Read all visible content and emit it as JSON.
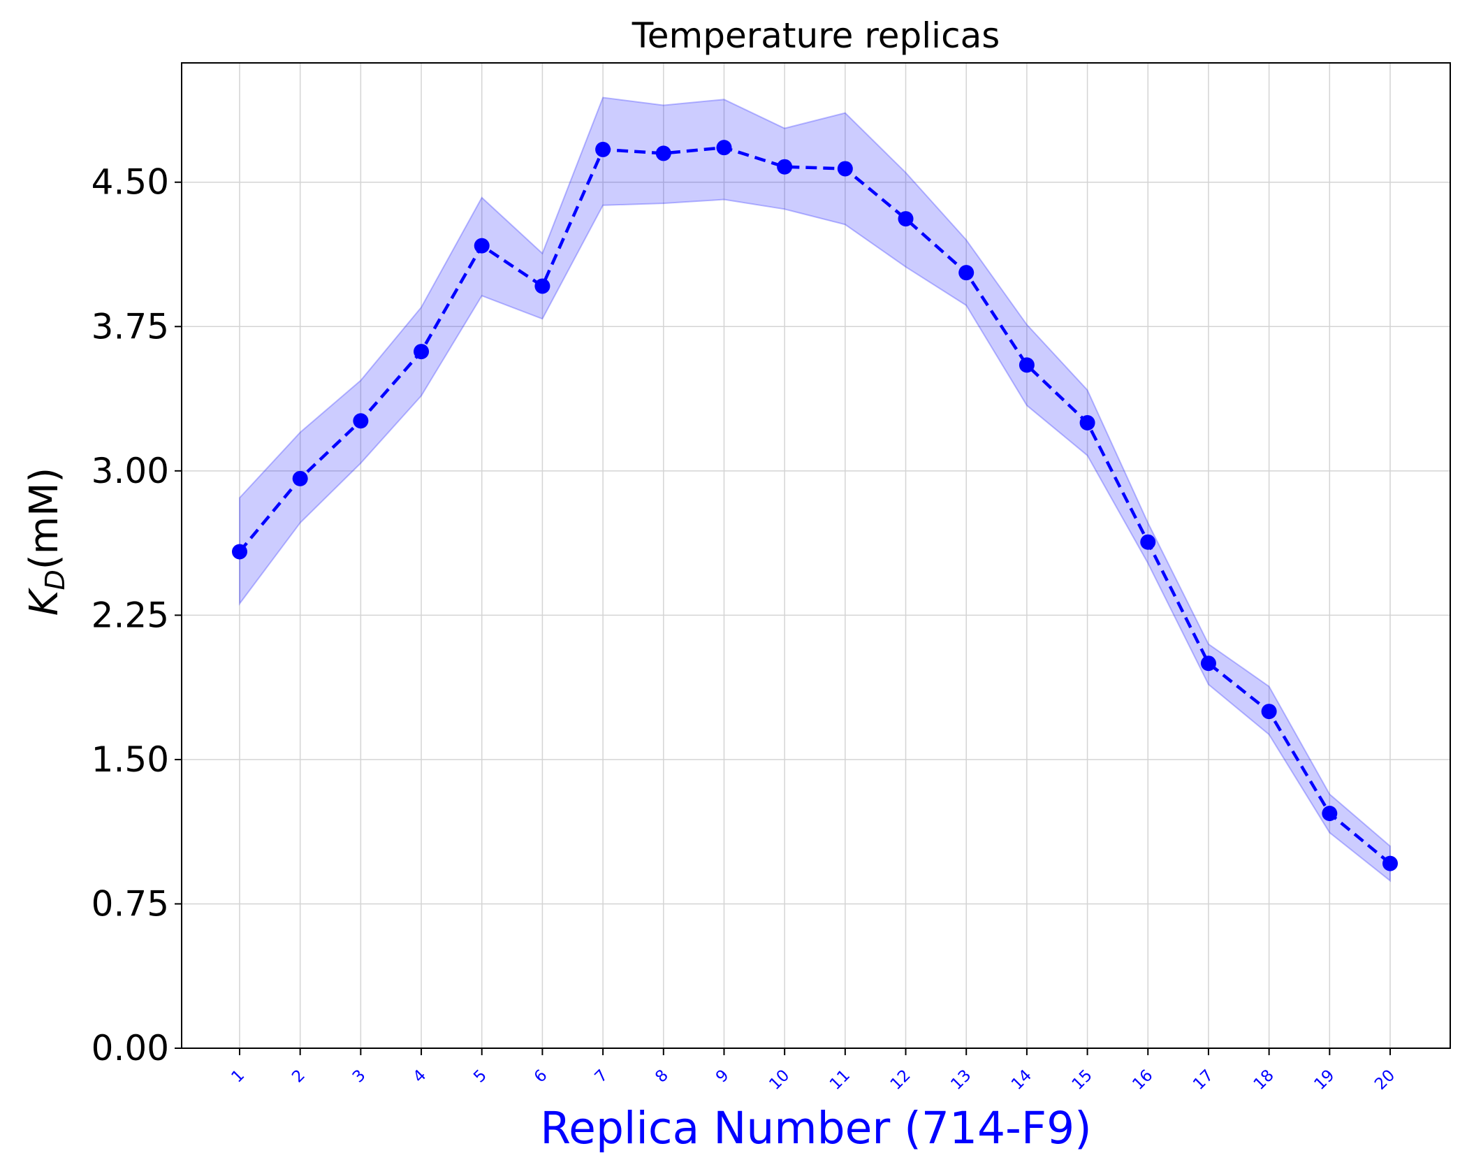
{
  "chart_data": {
    "type": "line",
    "title": "Temperature replicas",
    "xlabel": "Replica Number (714-F9)",
    "ylabel_main": "K",
    "ylabel_sub": "D",
    "ylabel_unit": "(mM)",
    "categories": [
      "1",
      "2",
      "3",
      "4",
      "5",
      "6",
      "7",
      "8",
      "9",
      "10",
      "11",
      "12",
      "13",
      "14",
      "15",
      "16",
      "17",
      "18",
      "19",
      "20"
    ],
    "series": [
      {
        "values": [
          2.58,
          2.96,
          3.26,
          3.62,
          4.17,
          3.96,
          4.67,
          4.65,
          4.68,
          4.58,
          4.57,
          4.31,
          4.03,
          3.55,
          3.25,
          2.63,
          2.0,
          1.75,
          1.22,
          0.96
        ],
        "upper": [
          2.86,
          3.2,
          3.47,
          3.85,
          4.42,
          4.13,
          4.94,
          4.9,
          4.93,
          4.78,
          4.86,
          4.55,
          4.2,
          3.76,
          3.42,
          2.73,
          2.1,
          1.88,
          1.32,
          1.05
        ],
        "lower": [
          2.31,
          2.73,
          3.04,
          3.39,
          3.91,
          3.79,
          4.38,
          4.39,
          4.41,
          4.36,
          4.28,
          4.06,
          3.86,
          3.34,
          3.08,
          2.52,
          1.89,
          1.63,
          1.12,
          0.87
        ]
      }
    ],
    "ylim": [
      0,
      5.12
    ],
    "yticks": [
      "0.00",
      "0.75",
      "1.50",
      "2.25",
      "3.00",
      "3.75",
      "4.50"
    ],
    "ytick_values": [
      0,
      0.75,
      1.5,
      2.25,
      3.0,
      3.75,
      4.5
    ],
    "grid": true,
    "line_color": "#0000ff",
    "band_color": "#0000ff",
    "band_opacity": 0.2,
    "line_style": "dashed",
    "marker": "circle"
  }
}
